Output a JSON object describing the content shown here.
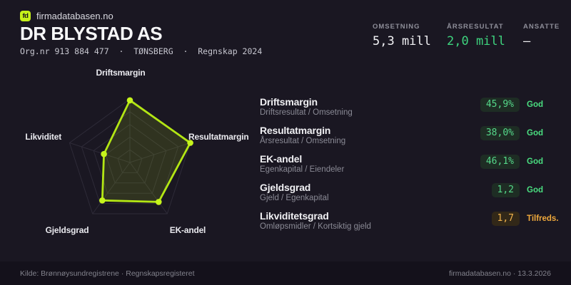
{
  "brand": {
    "logo": "fd",
    "site": "firmadatabasen.no"
  },
  "header": {
    "company": "DR BLYSTAD AS",
    "meta": "Org.nr 913 884 477  ·  TØNSBERG  ·  Regnskap 2024"
  },
  "stats": [
    {
      "label": "OMSETNING",
      "value": "5,3 mill",
      "tone": "plain"
    },
    {
      "label": "ÅRSRESULTAT",
      "value": "2,0 mill",
      "tone": "green"
    },
    {
      "label": "ANSATTE",
      "value": "–",
      "tone": "plain"
    }
  ],
  "chart_data": {
    "type": "radar",
    "axes": [
      "Driftsmargin",
      "Resultatmargin",
      "EK-andel",
      "Gjeldsgrad",
      "Likviditet"
    ],
    "values": [
      98,
      100,
      77,
      74,
      43
    ],
    "max": 100,
    "rings": 5,
    "legend": "none",
    "grid": true
  },
  "metrics": [
    {
      "title": "Driftsmargin",
      "formula": "Driftsresultat / Omsetning",
      "value": "45,9%",
      "status": "God",
      "status_type": "good"
    },
    {
      "title": "Resultatmargin",
      "formula": "Årsresultat / Omsetning",
      "value": "38,0%",
      "status": "God",
      "status_type": "good"
    },
    {
      "title": "EK-andel",
      "formula": "Egenkapital / Eiendeler",
      "value": "46,1%",
      "status": "God",
      "status_type": "good"
    },
    {
      "title": "Gjeldsgrad",
      "formula": "Gjeld / Egenkapital",
      "value": "1,2",
      "status": "God",
      "status_type": "good"
    },
    {
      "title": "Likviditetsgrad",
      "formula": "Omløpsmidler / Kortsiktig gjeld",
      "value": "1,7",
      "status": "Tilfreds.",
      "status_type": "warn"
    }
  ],
  "footer": {
    "left": "Kilde: Brønnøysundregistrene · Regnskapsregisteret",
    "right": "firmadatabasen.no · 13.3.2026"
  },
  "colors": {
    "background": "#1a1722",
    "footer_background": "#14111b",
    "accent_lime": "#b3e614",
    "dot_lime": "#c6f41c",
    "series_fill": "rgba(181,230,20,0.14)",
    "grid": "#2e2b38",
    "green_value": "#3ed47e",
    "status_good": "#4ade80",
    "status_warn": "#f0a93c",
    "pill_good_bg": "#1e2d24",
    "pill_good_text": "#55d88a",
    "pill_warn_bg": "#322818",
    "pill_warn_text": "#f0b24b"
  }
}
